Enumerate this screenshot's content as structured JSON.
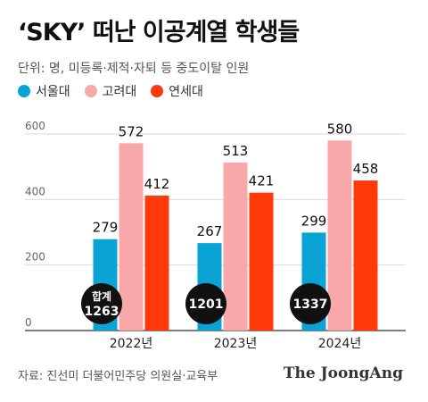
{
  "header": {
    "title": "‘SKY’ 떠난 이공계열 학생들",
    "unit_note": "단위: 명, 미등록·제적·자퇴 등 중도이탈 인원"
  },
  "legend": [
    {
      "label": "서울대",
      "color": "#0aa3d6"
    },
    {
      "label": "고려대",
      "color": "#f8a8a8"
    },
    {
      "label": "연세대",
      "color": "#ff3a0a"
    }
  ],
  "footer": {
    "source": "자료: 진선미 더불어민주당 의원실·교육부",
    "brand": "The JoongAng"
  },
  "chart_data": {
    "type": "bar",
    "categories": [
      "2022년",
      "2023년",
      "2024년"
    ],
    "series": [
      {
        "name": "서울대",
        "values": [
          279,
          267,
          299
        ],
        "color": "#0aa3d6"
      },
      {
        "name": "고려대",
        "values": [
          572,
          513,
          580
        ],
        "color": "#f8a8a8"
      },
      {
        "name": "연세대",
        "values": [
          412,
          421,
          458
        ],
        "color": "#ff3a0a"
      }
    ],
    "totals": [
      {
        "label": "합계",
        "value": "1263"
      },
      {
        "label": "",
        "value": "1201"
      },
      {
        "label": "",
        "value": "1337"
      }
    ],
    "ylim": [
      0,
      600
    ],
    "yticks": [
      0,
      200,
      400,
      600
    ],
    "ytick_labels": [
      "0",
      "200",
      "400",
      "600"
    ],
    "grid": true,
    "title": "",
    "xlabel": "",
    "ylabel": ""
  }
}
